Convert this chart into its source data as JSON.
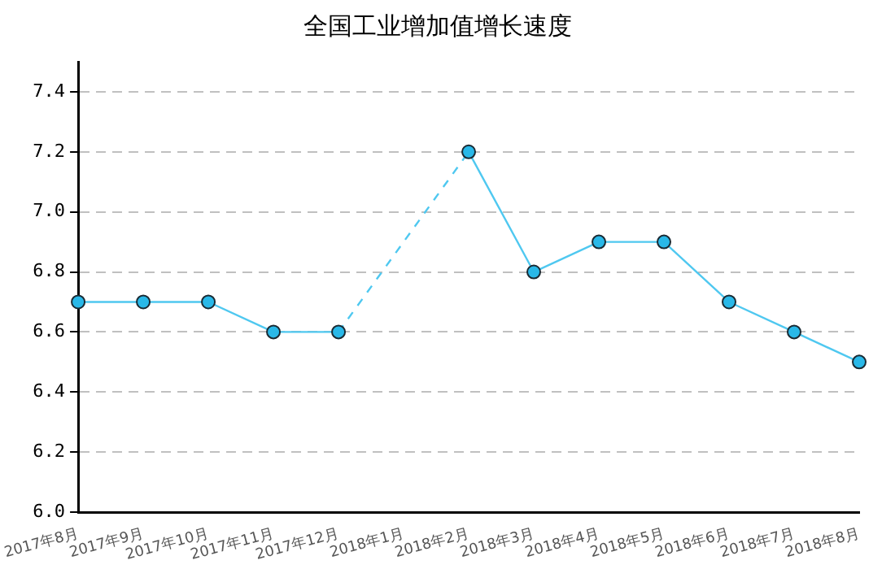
{
  "chart_data": {
    "type": "line",
    "title": "全国工业增加值增长速度",
    "categories": [
      "2017年8月",
      "2017年9月",
      "2017年10月",
      "2017年11月",
      "2017年12月",
      "2018年1月",
      "2018年2月",
      "2018年3月",
      "2018年4月",
      "2018年5月",
      "2018年6月",
      "2018年7月",
      "2018年8月"
    ],
    "series": [
      {
        "color": "#4fc8f0",
        "values": [
          6.7,
          6.7,
          6.7,
          6.6,
          6.6,
          null,
          7.2,
          6.8,
          6.9,
          6.9,
          6.7,
          6.6,
          6.5
        ]
      }
    ],
    "ylim": [
      6.0,
      7.5
    ],
    "yticks": [
      {
        "value": 6.0,
        "label": "6.0"
      },
      6.2,
      6.4,
      6.6,
      6.8,
      {
        "value": 7.0,
        "label": "7.0"
      },
      7.2,
      7.4
    ],
    "grid": "y",
    "legend": false,
    "marker": "circle",
    "line_style": "solid"
  }
}
